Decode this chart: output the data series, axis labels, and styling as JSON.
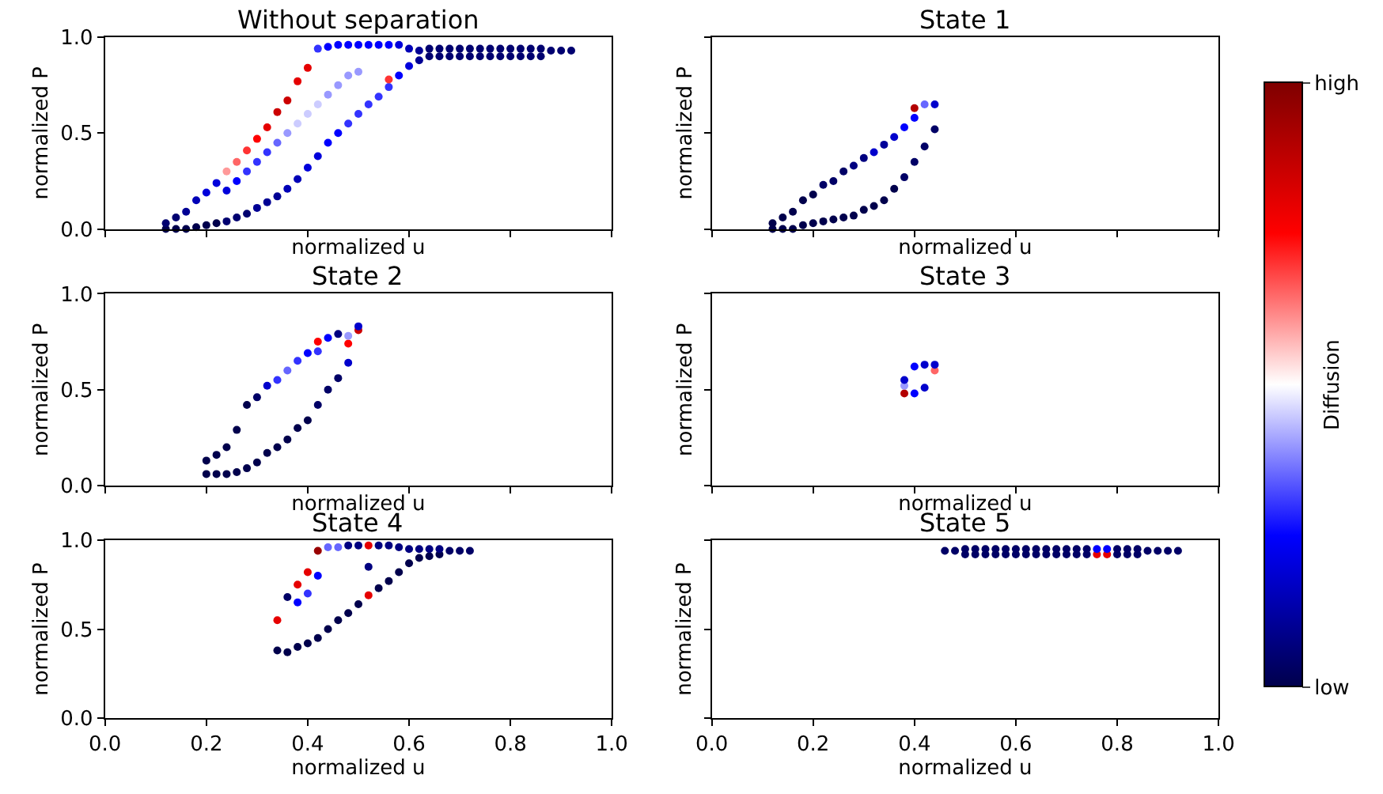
{
  "chart_data": [
    {
      "type": "scatter",
      "title": "Without separation",
      "xlabel": "normalized u",
      "ylabel": "normalized P",
      "xlim": [
        0,
        1
      ],
      "ylim": [
        0,
        1
      ],
      "xticks": [
        {
          "value": 0,
          "label": null
        },
        {
          "value": 0.2,
          "label": null
        },
        {
          "value": 0.4,
          "label": null
        },
        {
          "value": 0.6,
          "label": null
        },
        {
          "value": 0.8,
          "label": null
        },
        {
          "value": 1,
          "label": null
        }
      ],
      "yticks": [
        {
          "value": 0,
          "label": "0.0"
        },
        {
          "value": 0.5,
          "label": "0.5"
        },
        {
          "value": 1,
          "label": "1.0"
        }
      ],
      "tick_labels": "y",
      "marker": "circle",
      "clabel": "Diffusion",
      "clim": [
        0,
        1
      ],
      "cticks": [
        {
          "value": 0,
          "label": "low"
        },
        {
          "value": 1,
          "label": "high"
        }
      ],
      "x": [
        0.12,
        0.12,
        0.14,
        0.14,
        0.16,
        0.16,
        0.18,
        0.18,
        0.2,
        0.2,
        0.22,
        0.22,
        0.24,
        0.24,
        0.24,
        0.26,
        0.26,
        0.26,
        0.28,
        0.28,
        0.28,
        0.3,
        0.3,
        0.3,
        0.32,
        0.32,
        0.32,
        0.34,
        0.34,
        0.34,
        0.36,
        0.36,
        0.36,
        0.38,
        0.38,
        0.38,
        0.4,
        0.4,
        0.4,
        0.42,
        0.42,
        0.42,
        0.44,
        0.44,
        0.44,
        0.46,
        0.46,
        0.46,
        0.48,
        0.48,
        0.48,
        0.5,
        0.5,
        0.5,
        0.52,
        0.52,
        0.54,
        0.54,
        0.56,
        0.56,
        0.56,
        0.58,
        0.58,
        0.6,
        0.6,
        0.62,
        0.62,
        0.64,
        0.64,
        0.66,
        0.66,
        0.68,
        0.68,
        0.7,
        0.7,
        0.72,
        0.72,
        0.74,
        0.74,
        0.76,
        0.76,
        0.78,
        0.78,
        0.8,
        0.8,
        0.82,
        0.82,
        0.84,
        0.84,
        0.86,
        0.86,
        0.88,
        0.9,
        0.92
      ],
      "values": [
        0.0,
        0.03,
        0.0,
        0.06,
        0.0,
        0.09,
        0.01,
        0.15,
        0.02,
        0.19,
        0.03,
        0.24,
        0.04,
        0.2,
        0.3,
        0.06,
        0.25,
        0.35,
        0.08,
        0.3,
        0.41,
        0.11,
        0.35,
        0.47,
        0.14,
        0.4,
        0.53,
        0.17,
        0.45,
        0.61,
        0.21,
        0.5,
        0.67,
        0.26,
        0.55,
        0.77,
        0.32,
        0.6,
        0.84,
        0.38,
        0.65,
        0.94,
        0.45,
        0.7,
        0.95,
        0.5,
        0.75,
        0.96,
        0.55,
        0.8,
        0.96,
        0.6,
        0.82,
        0.96,
        0.65,
        0.96,
        0.69,
        0.96,
        0.74,
        0.78,
        0.96,
        0.8,
        0.96,
        0.85,
        0.94,
        0.88,
        0.93,
        0.9,
        0.94,
        0.9,
        0.94,
        0.9,
        0.94,
        0.9,
        0.94,
        0.9,
        0.94,
        0.9,
        0.94,
        0.9,
        0.94,
        0.9,
        0.94,
        0.9,
        0.94,
        0.9,
        0.94,
        0.9,
        0.94,
        0.9,
        0.94,
        0.93,
        0.93,
        0.93
      ],
      "cvalues": [
        0.0,
        0.05,
        0.0,
        0.05,
        0.0,
        0.1,
        0.0,
        0.15,
        0.0,
        0.2,
        0.0,
        0.2,
        0.05,
        0.2,
        0.6,
        0.05,
        0.25,
        0.65,
        0.05,
        0.3,
        0.7,
        0.1,
        0.3,
        0.75,
        0.1,
        0.3,
        0.8,
        0.1,
        0.35,
        0.85,
        0.15,
        0.4,
        0.85,
        0.15,
        0.45,
        0.8,
        0.2,
        0.45,
        0.8,
        0.2,
        0.45,
        0.3,
        0.25,
        0.4,
        0.25,
        0.25,
        0.4,
        0.25,
        0.3,
        0.4,
        0.25,
        0.3,
        0.4,
        0.25,
        0.3,
        0.25,
        0.3,
        0.25,
        0.3,
        0.7,
        0.25,
        0.25,
        0.2,
        0.2,
        0.15,
        0.1,
        0.1,
        0.05,
        0.05,
        0.05,
        0.05,
        0.05,
        0.05,
        0.05,
        0.05,
        0.05,
        0.05,
        0.05,
        0.05,
        0.05,
        0.05,
        0.05,
        0.05,
        0.05,
        0.05,
        0.05,
        0.05,
        0.05,
        0.05,
        0.05,
        0.05,
        0.05,
        0.05,
        0.05
      ]
    },
    {
      "type": "scatter",
      "title": "State 1",
      "xlabel": "normalized u",
      "ylabel": "normalized P",
      "xlim": [
        0,
        1
      ],
      "ylim": [
        0,
        1
      ],
      "xticks": [
        {
          "value": 0,
          "label": null
        },
        {
          "value": 0.2,
          "label": null
        },
        {
          "value": 0.4,
          "label": null
        },
        {
          "value": 0.6,
          "label": null
        },
        {
          "value": 0.8,
          "label": null
        },
        {
          "value": 1,
          "label": null
        }
      ],
      "yticks": [
        {
          "value": 0,
          "label": null
        },
        {
          "value": 0.5,
          "label": null
        },
        {
          "value": 1,
          "label": null
        }
      ],
      "tick_labels": false,
      "marker": "circle",
      "x": [
        0.12,
        0.12,
        0.14,
        0.14,
        0.16,
        0.16,
        0.18,
        0.18,
        0.2,
        0.2,
        0.22,
        0.22,
        0.24,
        0.24,
        0.26,
        0.26,
        0.28,
        0.28,
        0.3,
        0.3,
        0.32,
        0.32,
        0.34,
        0.34,
        0.36,
        0.36,
        0.38,
        0.38,
        0.4,
        0.4,
        0.4,
        0.42,
        0.42,
        0.44,
        0.44
      ],
      "values": [
        0.0,
        0.03,
        0.0,
        0.06,
        0.0,
        0.09,
        0.02,
        0.15,
        0.03,
        0.18,
        0.04,
        0.23,
        0.05,
        0.25,
        0.06,
        0.3,
        0.07,
        0.33,
        0.1,
        0.37,
        0.12,
        0.4,
        0.15,
        0.44,
        0.21,
        0.48,
        0.27,
        0.53,
        0.35,
        0.58,
        0.63,
        0.43,
        0.65,
        0.52,
        0.65
      ],
      "colors": [
        "#00004c",
        "#00004c",
        "#00004c",
        "#00004c",
        "#00004c",
        "#00004c",
        "#00004c",
        "#00004c",
        "#00004c",
        "#00004c",
        "#00004c",
        "#000066",
        "#00004c",
        "#000066",
        "#00004c",
        "#000066",
        "#00004c",
        "#000080",
        "#00004c",
        "#000080",
        "#00004c",
        "#0000cc",
        "#00004c",
        "#000099",
        "#00004c",
        "#0000cc",
        "#000066",
        "#0000ff",
        "#000066",
        "#0000ff",
        "#b30000",
        "#000066",
        "#6666ff",
        "#000066",
        "#0000cc"
      ]
    },
    {
      "type": "scatter",
      "title": "State 2",
      "xlabel": "normalized u",
      "ylabel": "normalized P",
      "xlim": [
        0,
        1
      ],
      "ylim": [
        0,
        1
      ],
      "xticks": [
        {
          "value": 0,
          "label": null
        },
        {
          "value": 0.2,
          "label": null
        },
        {
          "value": 0.4,
          "label": null
        },
        {
          "value": 0.6,
          "label": null
        },
        {
          "value": 0.8,
          "label": null
        },
        {
          "value": 1,
          "label": null
        }
      ],
      "yticks": [
        {
          "value": 0,
          "label": "0.0"
        },
        {
          "value": 0.5,
          "label": "0.5"
        },
        {
          "value": 1,
          "label": "1.0"
        }
      ],
      "tick_labels": "y",
      "marker": "circle",
      "x": [
        0.2,
        0.2,
        0.22,
        0.22,
        0.24,
        0.24,
        0.26,
        0.26,
        0.28,
        0.28,
        0.3,
        0.3,
        0.32,
        0.32,
        0.34,
        0.34,
        0.36,
        0.36,
        0.38,
        0.38,
        0.4,
        0.4,
        0.42,
        0.42,
        0.42,
        0.44,
        0.44,
        0.46,
        0.46,
        0.48,
        0.48,
        0.48,
        0.5,
        0.5
      ],
      "values": [
        0.06,
        0.13,
        0.06,
        0.16,
        0.06,
        0.2,
        0.07,
        0.29,
        0.09,
        0.42,
        0.12,
        0.46,
        0.17,
        0.52,
        0.2,
        0.55,
        0.24,
        0.6,
        0.3,
        0.65,
        0.34,
        0.69,
        0.42,
        0.7,
        0.75,
        0.5,
        0.77,
        0.56,
        0.79,
        0.64,
        0.74,
        0.78,
        0.81,
        0.83
      ],
      "colors": [
        "#00004c",
        "#00004c",
        "#00004c",
        "#00004c",
        "#00004c",
        "#00004c",
        "#00004c",
        "#00004c",
        "#00004c",
        "#00004c",
        "#00004c",
        "#000066",
        "#00004c",
        "#0000cc",
        "#00004c",
        "#3333ff",
        "#00004c",
        "#6666ff",
        "#00004c",
        "#3333ff",
        "#00004c",
        "#0000ff",
        "#000066",
        "#3333ff",
        "#ff0000",
        "#000066",
        "#0000ff",
        "#000066",
        "#000080",
        "#0000cc",
        "#ff0000",
        "#9999ff",
        "#cc0000",
        "#0000cc"
      ]
    },
    {
      "type": "scatter",
      "title": "State 3",
      "xlabel": "normalized u",
      "ylabel": "normalized P",
      "xlim": [
        0,
        1
      ],
      "ylim": [
        0,
        1
      ],
      "xticks": [
        {
          "value": 0,
          "label": null
        },
        {
          "value": 0.2,
          "label": null
        },
        {
          "value": 0.4,
          "label": null
        },
        {
          "value": 0.6,
          "label": null
        },
        {
          "value": 0.8,
          "label": null
        },
        {
          "value": 1,
          "label": null
        }
      ],
      "yticks": [
        {
          "value": 0,
          "label": null
        },
        {
          "value": 0.5,
          "label": null
        },
        {
          "value": 1,
          "label": null
        }
      ],
      "tick_labels": false,
      "marker": "circle",
      "x": [
        0.38,
        0.38,
        0.38,
        0.4,
        0.4,
        0.42,
        0.42,
        0.44,
        0.44
      ],
      "values": [
        0.48,
        0.52,
        0.55,
        0.48,
        0.62,
        0.51,
        0.63,
        0.6,
        0.63
      ],
      "colors": [
        "#b30000",
        "#9999ff",
        "#0000cc",
        "#0000ff",
        "#0000ff",
        "#0000cc",
        "#0000cc",
        "#ff6666",
        "#0000cc"
      ]
    },
    {
      "type": "scatter",
      "title": "State 4",
      "xlabel": "normalized u",
      "ylabel": "normalized P",
      "xlim": [
        0,
        1
      ],
      "ylim": [
        0,
        1
      ],
      "xticks": [
        {
          "value": 0,
          "label": "0.0"
        },
        {
          "value": 0.2,
          "label": "0.2"
        },
        {
          "value": 0.4,
          "label": "0.4"
        },
        {
          "value": 0.6,
          "label": "0.6"
        },
        {
          "value": 0.8,
          "label": "0.8"
        },
        {
          "value": 1,
          "label": "1.0"
        }
      ],
      "yticks": [
        {
          "value": 0,
          "label": "0.0"
        },
        {
          "value": 0.5,
          "label": "0.5"
        },
        {
          "value": 1,
          "label": "1.0"
        }
      ],
      "marker": "circle",
      "x": [
        0.34,
        0.34,
        0.36,
        0.36,
        0.38,
        0.38,
        0.38,
        0.4,
        0.4,
        0.4,
        0.42,
        0.42,
        0.42,
        0.44,
        0.44,
        0.46,
        0.46,
        0.48,
        0.48,
        0.5,
        0.5,
        0.52,
        0.52,
        0.52,
        0.54,
        0.54,
        0.56,
        0.56,
        0.58,
        0.58,
        0.6,
        0.6,
        0.62,
        0.62,
        0.64,
        0.64,
        0.66,
        0.66,
        0.68,
        0.7,
        0.72
      ],
      "values": [
        0.38,
        0.55,
        0.37,
        0.68,
        0.4,
        0.65,
        0.75,
        0.42,
        0.7,
        0.82,
        0.45,
        0.8,
        0.94,
        0.5,
        0.96,
        0.55,
        0.96,
        0.59,
        0.97,
        0.64,
        0.97,
        0.69,
        0.85,
        0.97,
        0.73,
        0.97,
        0.77,
        0.97,
        0.82,
        0.96,
        0.87,
        0.95,
        0.9,
        0.95,
        0.91,
        0.95,
        0.92,
        0.95,
        0.94,
        0.94,
        0.94
      ],
      "colors": [
        "#00004c",
        "#e60000",
        "#00004c",
        "#000066",
        "#00004c",
        "#0000ff",
        "#e60000",
        "#00004c",
        "#3333ff",
        "#e60000",
        "#00004c",
        "#0000ff",
        "#990000",
        "#00004c",
        "#6666ff",
        "#00004c",
        "#6666ff",
        "#00004c",
        "#000080",
        "#00004c",
        "#000080",
        "#e60000",
        "#000080",
        "#e60000",
        "#00004c",
        "#000080",
        "#00004c",
        "#000080",
        "#00004c",
        "#000080",
        "#00004c",
        "#000080",
        "#00004c",
        "#000080",
        "#00004c",
        "#000080",
        "#00004c",
        "#000080",
        "#000066",
        "#000066",
        "#000066"
      ]
    },
    {
      "type": "scatter",
      "title": "State 5",
      "xlabel": "normalized u",
      "ylabel": "normalized P",
      "xlim": [
        0,
        1
      ],
      "ylim": [
        0,
        1
      ],
      "xticks": [
        {
          "value": 0,
          "label": "0.0"
        },
        {
          "value": 0.2,
          "label": "0.2"
        },
        {
          "value": 0.4,
          "label": "0.4"
        },
        {
          "value": 0.6,
          "label": "0.6"
        },
        {
          "value": 0.8,
          "label": "0.8"
        },
        {
          "value": 1,
          "label": "1.0"
        }
      ],
      "yticks": [
        {
          "value": 0,
          "label": null
        },
        {
          "value": 0.5,
          "label": null
        },
        {
          "value": 1,
          "label": null
        }
      ],
      "tick_labels": "x",
      "marker": "circle",
      "x": [
        0.46,
        0.48,
        0.5,
        0.5,
        0.52,
        0.52,
        0.54,
        0.54,
        0.56,
        0.56,
        0.58,
        0.58,
        0.6,
        0.6,
        0.62,
        0.62,
        0.64,
        0.64,
        0.66,
        0.66,
        0.68,
        0.68,
        0.7,
        0.7,
        0.72,
        0.72,
        0.74,
        0.74,
        0.76,
        0.76,
        0.78,
        0.78,
        0.8,
        0.8,
        0.82,
        0.82,
        0.84,
        0.84,
        0.86,
        0.88,
        0.9,
        0.92
      ],
      "values": [
        0.94,
        0.94,
        0.92,
        0.95,
        0.92,
        0.95,
        0.92,
        0.95,
        0.92,
        0.95,
        0.92,
        0.95,
        0.92,
        0.95,
        0.92,
        0.95,
        0.92,
        0.95,
        0.92,
        0.95,
        0.92,
        0.95,
        0.92,
        0.95,
        0.92,
        0.95,
        0.92,
        0.95,
        0.92,
        0.95,
        0.92,
        0.95,
        0.92,
        0.95,
        0.92,
        0.95,
        0.92,
        0.95,
        0.94,
        0.94,
        0.94,
        0.94
      ],
      "colors": [
        "#000066",
        "#000066",
        "#000066",
        "#000066",
        "#000066",
        "#000066",
        "#000066",
        "#000066",
        "#000066",
        "#000066",
        "#000066",
        "#000066",
        "#000066",
        "#000066",
        "#000066",
        "#000066",
        "#000066",
        "#000066",
        "#000066",
        "#000066",
        "#000066",
        "#000066",
        "#000066",
        "#000066",
        "#000066",
        "#000066",
        "#000066",
        "#000066",
        "#e60000",
        "#0000ff",
        "#e60000",
        "#0000ff",
        "#000066",
        "#000066",
        "#000066",
        "#000066",
        "#000066",
        "#000066",
        "#000066",
        "#000066",
        "#000066",
        "#000066"
      ]
    }
  ]
}
